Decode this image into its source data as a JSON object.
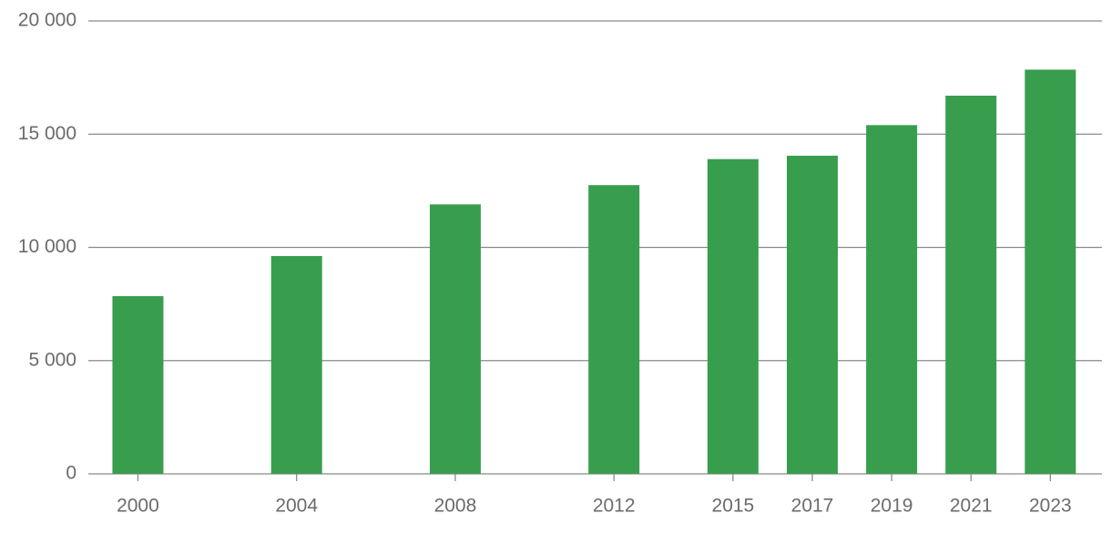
{
  "chart_data": {
    "type": "bar",
    "x": [
      2000,
      2004,
      2008,
      2012,
      2015,
      2017,
      2019,
      2021,
      2023
    ],
    "values": [
      7850,
      9620,
      11900,
      12750,
      13900,
      14050,
      15400,
      16700,
      17850
    ],
    "color": "#389e4d",
    "xlim": [
      1998.75,
      2024.3
    ],
    "xticks": [
      2000,
      2004,
      2008,
      2012,
      2015,
      2017,
      2019,
      2021,
      2023
    ],
    "ylim": [
      0,
      20000
    ],
    "yticks": [
      0,
      {
        "value": 5000,
        "label": "5 000"
      },
      {
        "value": 10000,
        "label": "10 000"
      },
      {
        "value": 15000,
        "label": "15 000"
      },
      {
        "value": 20000,
        "label": "20 000"
      }
    ],
    "grid": true
  }
}
